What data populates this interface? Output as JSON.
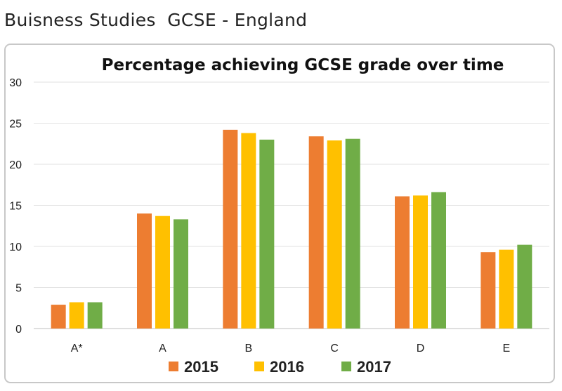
{
  "header": {
    "title": "Buisness Studies  GCSE - England"
  },
  "chart_data": {
    "type": "bar",
    "title": "Percentage achieving GCSE grade over time",
    "xlabel": "",
    "ylabel": "",
    "categories": [
      "A*",
      "A",
      "B",
      "C",
      "D",
      "E"
    ],
    "series": [
      {
        "name": "2015",
        "color": "#ED7D31",
        "values": [
          2.9,
          14.0,
          24.2,
          23.4,
          16.1,
          9.3
        ]
      },
      {
        "name": "2016",
        "color": "#FFC000",
        "values": [
          3.2,
          13.7,
          23.8,
          22.9,
          16.2,
          9.6
        ]
      },
      {
        "name": "2017",
        "color": "#70AD47",
        "values": [
          3.2,
          13.3,
          23.0,
          23.1,
          16.6,
          10.2
        ]
      }
    ],
    "ylim": [
      0,
      30
    ],
    "yticks": [
      0,
      5,
      10,
      15,
      20,
      25,
      30
    ],
    "grid": true,
    "legend_position": "bottom"
  }
}
